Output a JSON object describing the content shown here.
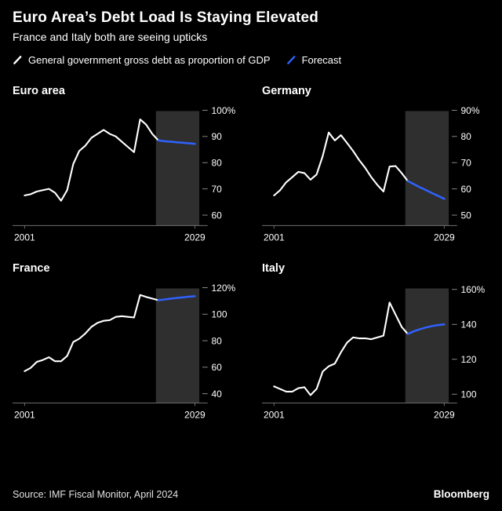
{
  "header": {
    "title": "Euro Area’s Debt Load Is Staying Elevated",
    "subtitle": "France and Italy both are seeing upticks",
    "legend": [
      {
        "label": "General government gross debt as proportion of GDP",
        "color": "#ffffff"
      },
      {
        "label": "Forecast",
        "color": "#2f62ff"
      }
    ]
  },
  "theme": {
    "background": "#000000",
    "band_color": "#2f2f2f",
    "axis_color": "#6f6f6f",
    "tick_color": "#8c8c8c",
    "text_color": "#ffffff",
    "history_color": "#ffffff",
    "forecast_color": "#2f62ff"
  },
  "chart_data": [
    {
      "type": "line",
      "title": "Euro area",
      "x_range": [
        2001,
        2029
      ],
      "xtick_labels": [
        "2001",
        "2029"
      ],
      "ylim": [
        56,
        102
      ],
      "yticks": [
        [
          60,
          "60"
        ],
        [
          70,
          "70"
        ],
        [
          80,
          "80"
        ],
        [
          90,
          "90"
        ],
        [
          100,
          "100%"
        ]
      ],
      "forecast_band": [
        2022.6,
        2029.75
      ],
      "series": [
        {
          "name": "history",
          "color": "#ffffff",
          "x": [
            2001,
            2002,
            2003,
            2004,
            2005,
            2006,
            2007,
            2008,
            2009,
            2010,
            2011,
            2012,
            2013,
            2014,
            2015,
            2016,
            2017,
            2018,
            2019,
            2020,
            2021,
            2022,
            2023
          ],
          "values": [
            67.5,
            68,
            69,
            69.5,
            70,
            68.5,
            65.5,
            69.5,
            79.5,
            84.5,
            86.5,
            89.5,
            91,
            92.5,
            91,
            90,
            88,
            86,
            84,
            96.5,
            94.5,
            91,
            88.5
          ]
        },
        {
          "name": "forecast",
          "color": "#2f62ff",
          "x": [
            2023,
            2024,
            2025,
            2026,
            2027,
            2028,
            2029
          ],
          "values": [
            88.5,
            88.2,
            88,
            87.8,
            87.6,
            87.4,
            87.2
          ]
        }
      ]
    },
    {
      "type": "line",
      "title": "Germany",
      "x_range": [
        2001,
        2029
      ],
      "xtick_labels": [
        "2001",
        "2029"
      ],
      "ylim": [
        46,
        92
      ],
      "yticks": [
        [
          50,
          "50"
        ],
        [
          60,
          "60"
        ],
        [
          70,
          "70"
        ],
        [
          80,
          "80"
        ],
        [
          90,
          "90%"
        ]
      ],
      "forecast_band": [
        2022.6,
        2029.75
      ],
      "series": [
        {
          "name": "history",
          "color": "#ffffff",
          "x": [
            2001,
            2002,
            2003,
            2004,
            2005,
            2006,
            2007,
            2008,
            2009,
            2010,
            2011,
            2012,
            2013,
            2014,
            2015,
            2016,
            2017,
            2018,
            2019,
            2020,
            2021,
            2022,
            2023
          ],
          "values": [
            57.5,
            59.5,
            62.5,
            64.5,
            66.5,
            66,
            63.5,
            65.5,
            72.5,
            81.5,
            78.5,
            80.5,
            77.5,
            74.5,
            71,
            68,
            64.5,
            61.5,
            59,
            68.5,
            68.7,
            66,
            63
          ]
        },
        {
          "name": "forecast",
          "color": "#2f62ff",
          "x": [
            2023,
            2024,
            2025,
            2026,
            2027,
            2028,
            2029
          ],
          "values": [
            63,
            61.8,
            60.6,
            59.5,
            58.4,
            57.3,
            56.2
          ]
        }
      ]
    },
    {
      "type": "line",
      "title": "France",
      "x_range": [
        2001,
        2029
      ],
      "xtick_labels": [
        "2001",
        "2029"
      ],
      "ylim": [
        33,
        124
      ],
      "yticks": [
        [
          40,
          "40"
        ],
        [
          60,
          "60"
        ],
        [
          80,
          "80"
        ],
        [
          100,
          "100"
        ],
        [
          120,
          "120%"
        ]
      ],
      "forecast_band": [
        2022.6,
        2029.75
      ],
      "series": [
        {
          "name": "history",
          "color": "#ffffff",
          "x": [
            2001,
            2002,
            2003,
            2004,
            2005,
            2006,
            2007,
            2008,
            2009,
            2010,
            2011,
            2012,
            2013,
            2014,
            2015,
            2016,
            2017,
            2018,
            2019,
            2020,
            2021,
            2022,
            2023
          ],
          "values": [
            57,
            59.5,
            64,
            65.5,
            67.5,
            64.5,
            64.5,
            68.5,
            79,
            81.5,
            85.5,
            90.5,
            93.5,
            95,
            95.5,
            98,
            98.5,
            98,
            97.5,
            114.5,
            113,
            111.8,
            110.5
          ]
        },
        {
          "name": "forecast",
          "color": "#2f62ff",
          "x": [
            2023,
            2024,
            2025,
            2026,
            2027,
            2028,
            2029
          ],
          "values": [
            110.5,
            111.1,
            111.7,
            112.2,
            112.7,
            113.2,
            113.6
          ]
        }
      ]
    },
    {
      "type": "line",
      "title": "Italy",
      "x_range": [
        2001,
        2029
      ],
      "xtick_labels": [
        "2001",
        "2029"
      ],
      "ylim": [
        95,
        164
      ],
      "yticks": [
        [
          100,
          "100"
        ],
        [
          120,
          "120"
        ],
        [
          140,
          "140"
        ],
        [
          160,
          "160%"
        ]
      ],
      "forecast_band": [
        2022.6,
        2029.75
      ],
      "series": [
        {
          "name": "history",
          "color": "#ffffff",
          "x": [
            2001,
            2002,
            2003,
            2004,
            2005,
            2006,
            2007,
            2008,
            2009,
            2010,
            2011,
            2012,
            2013,
            2014,
            2015,
            2016,
            2017,
            2018,
            2019,
            2020,
            2021,
            2022,
            2023
          ],
          "values": [
            104.5,
            103,
            101.5,
            101.5,
            103.5,
            104,
            99.5,
            103,
            113,
            116,
            117.5,
            124,
            129.5,
            132.5,
            132,
            132,
            131.5,
            132.5,
            133.5,
            152.5,
            145.5,
            138.5,
            134.5
          ]
        },
        {
          "name": "forecast",
          "color": "#2f62ff",
          "x": [
            2023,
            2024,
            2025,
            2026,
            2027,
            2028,
            2029
          ],
          "values": [
            134.5,
            136,
            137.2,
            138.2,
            139,
            139.6,
            140
          ]
        }
      ]
    }
  ],
  "footer": {
    "source": "Source: IMF Fiscal Monitor, April 2024",
    "brand": "Bloomberg"
  }
}
